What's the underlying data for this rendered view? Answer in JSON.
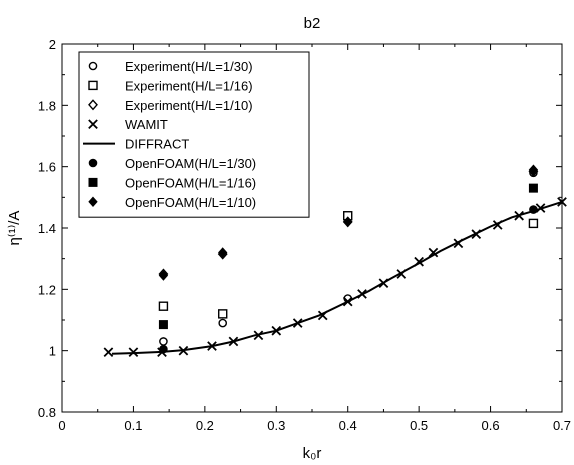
{
  "chart_data": {
    "type": "scatter",
    "title": "b2",
    "xlabel": "k₀r",
    "ylabel": "η⁽¹⁾/A",
    "xlim": [
      0,
      0.7
    ],
    "ylim": [
      0.8,
      2
    ],
    "x_ticks": [
      "0",
      "0.1",
      "0.2",
      "0.3",
      "0.4",
      "0.5",
      "0.6",
      "0.7"
    ],
    "y_ticks": [
      "0.8",
      "1",
      "1.2",
      "1.4",
      "1.6",
      "1.8",
      "2"
    ],
    "grid": false,
    "legend_position": "top-left",
    "series": [
      {
        "name": "Experiment(H/L=1/30)",
        "marker": "circle-open",
        "points": [
          [
            0.142,
            1.03
          ],
          [
            0.225,
            1.09
          ],
          [
            0.4,
            1.17
          ],
          [
            0.66,
            1.58
          ]
        ]
      },
      {
        "name": "Experiment(H/L=1/16)",
        "marker": "square-open",
        "points": [
          [
            0.142,
            1.145
          ],
          [
            0.225,
            1.12
          ],
          [
            0.4,
            1.44
          ],
          [
            0.66,
            1.415
          ]
        ]
      },
      {
        "name": "Experiment(H/L=1/10)",
        "marker": "diamond-open",
        "points": [
          [
            0.142,
            1.25
          ],
          [
            0.225,
            1.315
          ],
          [
            0.4,
            1.42
          ],
          [
            0.66,
            1.585
          ]
        ]
      },
      {
        "name": "WAMIT",
        "marker": "x",
        "points": [
          [
            0.065,
            0.995
          ],
          [
            0.1,
            0.995
          ],
          [
            0.14,
            0.995
          ],
          [
            0.17,
            1.0
          ],
          [
            0.21,
            1.015
          ],
          [
            0.24,
            1.03
          ],
          [
            0.275,
            1.05
          ],
          [
            0.3,
            1.065
          ],
          [
            0.33,
            1.09
          ],
          [
            0.365,
            1.115
          ],
          [
            0.4,
            1.16
          ],
          [
            0.42,
            1.185
          ],
          [
            0.45,
            1.22
          ],
          [
            0.475,
            1.25
          ],
          [
            0.5,
            1.29
          ],
          [
            0.52,
            1.32
          ],
          [
            0.555,
            1.35
          ],
          [
            0.58,
            1.38
          ],
          [
            0.61,
            1.41
          ],
          [
            0.64,
            1.44
          ],
          [
            0.67,
            1.465
          ],
          [
            0.7,
            1.485
          ]
        ]
      },
      {
        "name": "DIFFRACT",
        "marker": "line",
        "points": [
          [
            0.07,
            0.99
          ],
          [
            0.1,
            0.992
          ],
          [
            0.14,
            0.996
          ],
          [
            0.17,
            1.002
          ],
          [
            0.21,
            1.015
          ],
          [
            0.24,
            1.03
          ],
          [
            0.27,
            1.05
          ],
          [
            0.3,
            1.065
          ],
          [
            0.33,
            1.09
          ],
          [
            0.36,
            1.115
          ],
          [
            0.4,
            1.16
          ],
          [
            0.43,
            1.195
          ],
          [
            0.46,
            1.235
          ],
          [
            0.5,
            1.285
          ],
          [
            0.53,
            1.325
          ],
          [
            0.56,
            1.36
          ],
          [
            0.6,
            1.405
          ],
          [
            0.63,
            1.435
          ],
          [
            0.66,
            1.455
          ],
          [
            0.7,
            1.485
          ]
        ]
      },
      {
        "name": "OpenFOAM(H/L=1/30)",
        "marker": "circle-filled",
        "points": [
          [
            0.142,
            1.005
          ],
          [
            0.66,
            1.46
          ]
        ]
      },
      {
        "name": "OpenFOAM(H/L=1/16)",
        "marker": "square-filled",
        "points": [
          [
            0.142,
            1.085
          ],
          [
            0.66,
            1.53
          ]
        ]
      },
      {
        "name": "OpenFOAM(H/L=1/10)",
        "marker": "diamond-filled",
        "points": [
          [
            0.142,
            1.245
          ],
          [
            0.225,
            1.32
          ],
          [
            0.4,
            1.42
          ],
          [
            0.66,
            1.59
          ]
        ]
      }
    ]
  }
}
